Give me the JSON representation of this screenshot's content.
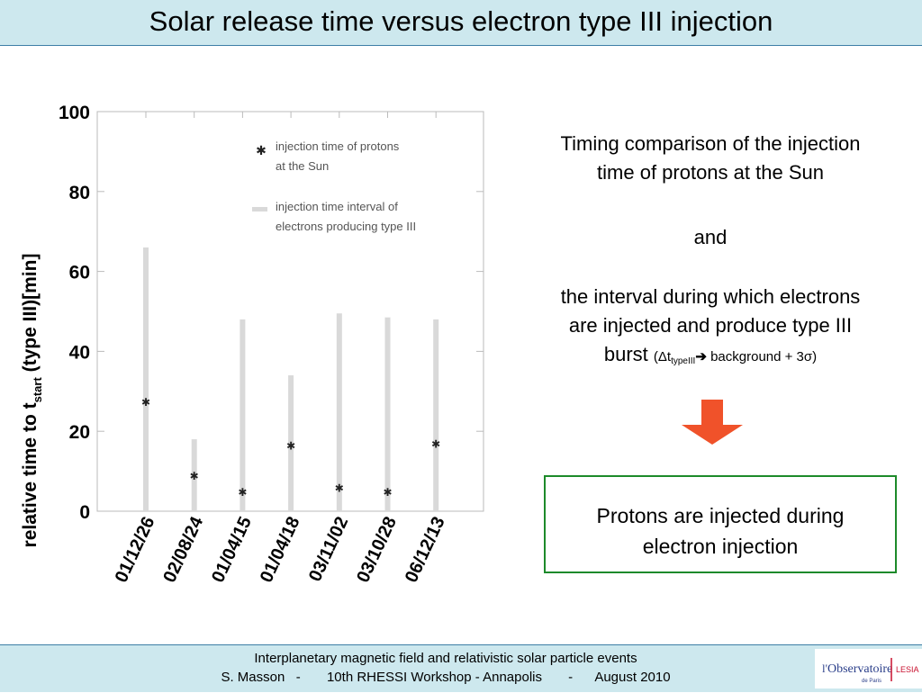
{
  "header": {
    "title": "Solar release time versus electron type III injection"
  },
  "chart_data": {
    "type": "scatter",
    "categories": [
      "01/12/26",
      "02/08/24",
      "01/04/15",
      "01/04/18",
      "03/11/02",
      "03/10/28",
      "06/12/13"
    ],
    "series": [
      {
        "name": "injection time of protons at the Sun",
        "marker": "asterisk",
        "values": [
          27.5,
          9,
          5,
          16.5,
          6,
          5,
          17
        ]
      },
      {
        "name": "injection time interval of electrons producing type III",
        "marker": "bar",
        "start": [
          0,
          0,
          0,
          0,
          0,
          0,
          0
        ],
        "end": [
          66,
          18,
          48,
          34,
          49.5,
          48.5,
          48
        ]
      }
    ],
    "ylabel_main": "relative time to t",
    "ylabel_sub": "start",
    "ylabel_tail": " (type III)[min]",
    "ylim": [
      0,
      100
    ],
    "yticks": [
      0,
      20,
      40,
      60,
      80,
      100
    ],
    "legend": {
      "placement": "top-right",
      "line1a": "injection time of protons",
      "line1b": "at the Sun",
      "line2a": "injection time interval of",
      "line2b": "electrons producing type III"
    },
    "grid": false
  },
  "side": {
    "line1": "Timing comparison of the injection",
    "line2": "time of protons at the Sun",
    "and": "and",
    "line3": "the interval during which electrons",
    "line4": "are injected and produce type III",
    "burst": "burst",
    "paren_open": "(",
    "delta_t": "Δt",
    "typeIII": "typeIII",
    "arrow_glyph": "➔",
    "formula_tail": " background + 3σ)",
    "arrow_color": "#f0522a"
  },
  "conclusion": {
    "line1": "Protons are injected during",
    "line2": "electron injection",
    "border_color": "#1d8a2a"
  },
  "footer": {
    "line1": "Interplanetary magnetic field and relativistic solar particle events",
    "line2": "S. Masson   -       10th RHESSI Workshop - Annapolis       -      August 2010",
    "logo_main": "Observatoire",
    "logo_prefix": "l'",
    "logo_sub": "de Paris",
    "logo_right": "LESIA"
  }
}
